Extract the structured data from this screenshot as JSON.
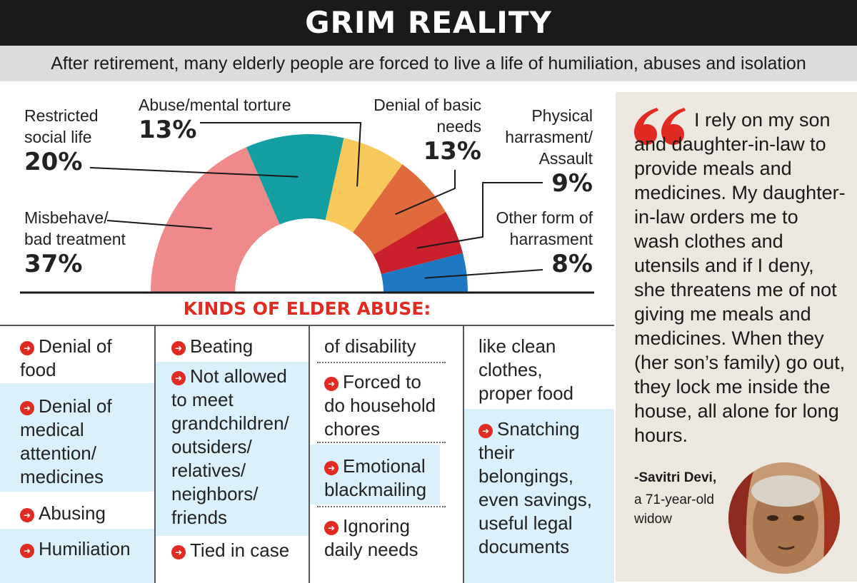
{
  "header": {
    "title": "GRIM REALITY",
    "subtitle": "After retirement, many elderly people are forced to live a life of humiliation, abuses and isolation"
  },
  "chart_data": {
    "type": "pie",
    "style": "semi-donut",
    "slices": [
      {
        "label": "Misbehave/ bad treatment",
        "value": 37,
        "display": "37%",
        "color": "#f08a8a"
      },
      {
        "label": "Restricted social life",
        "value": 20,
        "display": "20%",
        "color": "#139ea3"
      },
      {
        "label": "Abuse/mental torture",
        "value": 13,
        "display": "13%",
        "color": "#f7c85a"
      },
      {
        "label": "Denial of basic needs",
        "value": 13,
        "display": "13%",
        "color": "#e06a3c"
      },
      {
        "label": "Physical harrasment/ Assault",
        "value": 9,
        "display": "9%",
        "color": "#c9202b"
      },
      {
        "label": "Other form of harrasment",
        "value": 8,
        "display": "8%",
        "color": "#1f78c4"
      }
    ]
  },
  "kinds": {
    "title": "KINDS OF ELDER ABUSE:",
    "col1": [
      "Denial of food",
      "Denial of medical attention/ medicines",
      "Abusing",
      "Humiliation"
    ],
    "col2": [
      "Beating",
      "Not allowed to meet grandchildren/ outsiders/ relatives/ neighbors/ friends",
      "Tied in case"
    ],
    "col3": [
      "of disability",
      "Forced to do household chores",
      "Emotional blackmailing",
      "Ignoring daily needs"
    ],
    "col4": [
      "like clean clothes, proper food",
      "Snatching their belongings, even savings, useful legal documents"
    ]
  },
  "quote": {
    "text": "I rely on my son and daughter-in-law to provide meals and medicines. My daughter-in-law orders me to wash clothes and utensils and if I deny, she threatens me of not giving me meals and medicines. When they (her son’s family) go out, they lock me inside the house, all alone for long hours.",
    "author": "-Savitri Devi,",
    "author_desc": "a 71-year-old widow"
  },
  "colors": {
    "accent": "#e02a22",
    "highlight": "#daf0fb",
    "panel": "#ece8df"
  }
}
